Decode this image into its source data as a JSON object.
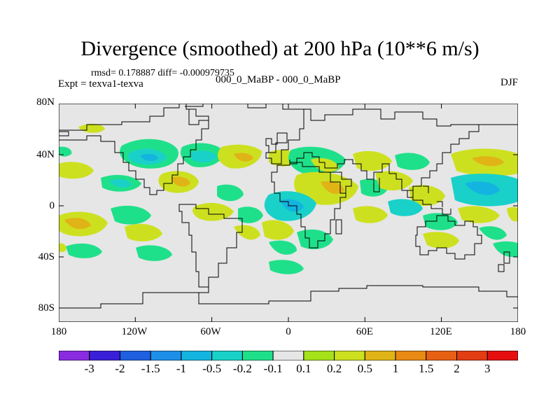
{
  "title": "Divergence (smoothed) at 200 hPa (10**6 m/s)",
  "stats": {
    "text": "rmsd= 0.178887 diff= -0.000979735"
  },
  "experiment": {
    "text": "Expt = texva1-texva"
  },
  "comparison": {
    "text": "000_0_MaBP - 000_0_MaBP"
  },
  "season": {
    "text": "DJF"
  },
  "map": {
    "projection": "cylindrical equidistant",
    "lat_labels": [
      "80N",
      "40N",
      "0",
      "40S",
      "80S"
    ],
    "lon_labels": [
      "180",
      "120W",
      "60W",
      "0",
      "60E",
      "120E",
      "180"
    ],
    "background_color": "#e6e6e6",
    "coastline_color": "#000000"
  },
  "colorbar": {
    "labels": [
      "-3",
      "-2",
      "-1.5",
      "-1",
      "-0.5",
      "-0.2",
      "-0.1",
      "0.1",
      "0.2",
      "0.5",
      "1",
      "1.5",
      "2",
      "3"
    ],
    "colors": [
      "#8a2be2",
      "#3a1fd8",
      "#1f5fe0",
      "#1e8fe8",
      "#14b4e0",
      "#19d1c8",
      "#1fe08a",
      "#e6e6e6",
      "#a5e21a",
      "#cde020",
      "#e0b417",
      "#e88a14",
      "#e86014",
      "#e33d14",
      "#e60f0f"
    ]
  },
  "field_colors": {
    "neg_weak": "#1fe08a",
    "neg_mid": "#19d1c8",
    "neg_strong": "#14b4e0",
    "pos_weak": "#a5e21a",
    "pos_mid": "#cde020",
    "pos_strong": "#e0b417"
  }
}
